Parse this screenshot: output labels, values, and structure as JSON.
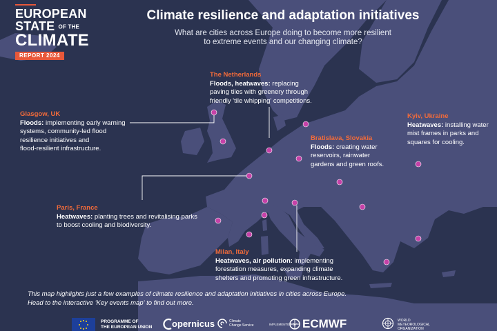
{
  "report": {
    "line1": "EUROPEAN",
    "line2": "STATE",
    "line2_small": "OF THE",
    "line3": "CLIMATE",
    "badge": "REPORT 2024"
  },
  "title": "Climate resilience and adaptation initiatives",
  "subtitle_line1": "What are cities across Europe doing to become more resilient",
  "subtitle_line2": "to extreme events and our changing climate?",
  "callouts": {
    "netherlands": {
      "city": "The Netherlands",
      "hazard": "Floods, heatwaves:",
      "l1": " replacing",
      "l2": "paving tiles with greenery through",
      "l3": "friendly 'tile whipping' competitions."
    },
    "glasgow": {
      "city": "Glasgow, UK",
      "hazard": "Floods:",
      "l1": " implementing early warning",
      "l2": "systems, community-led flood",
      "l3": "resilience initiatives and",
      "l4": "flood-resilient infrastructure."
    },
    "kyiv": {
      "city": "Kyiv, Ukraine",
      "hazard": "Heatwaves:",
      "l1": " installing water",
      "l2": "mist frames in parks and",
      "l3": "squares for cooling."
    },
    "bratislava": {
      "city": "Bratislava, Slovakia",
      "hazard": "Floods:",
      "l1": " creating water",
      "l2": "reservoirs, rainwater",
      "l3": "gardens and green roofs."
    },
    "paris": {
      "city": "Paris, France",
      "hazard": "Heatwaves:",
      "l1": " planting trees and revitalising parks",
      "l2": "to boost cooling and biodiversity."
    },
    "milan": {
      "city": "Milan, Italy",
      "hazard": "Heatwaves, air pollution:",
      "l1": " implementing",
      "l2": "forestation measures, expanding climate",
      "l3": "shelters and promoting green infrastructure."
    }
  },
  "note_line1": "This map highlights just a few examples of climate resilience and adaptation initiatives in cities across Europe.",
  "note_line2": "Head to the interactive 'Key events map' to find out more.",
  "footer": {
    "programme_line1": "PROGRAMME OF",
    "programme_line2": "THE EUROPEAN UNION",
    "copernicus": "opernicus",
    "ccs_line1": "Climate",
    "ccs_line2": "Change Service",
    "implemented_by": "IMPLEMENTED BY",
    "ecmwf": "ECMWF",
    "wmo_line1": "WORLD",
    "wmo_line2": "METEOROLOGICAL",
    "wmo_line3": "ORGANIZATION"
  },
  "colors": {
    "sea": "#2b3350",
    "land": "#4a4f7a",
    "accent": "#e8583a",
    "marker": "#c542a8"
  },
  "markers": [
    {
      "id": "glasgow"
    },
    {
      "id": "uk-south"
    },
    {
      "id": "netherlands"
    },
    {
      "id": "copenhagen"
    },
    {
      "id": "bratislava-north"
    },
    {
      "id": "bratislava"
    },
    {
      "id": "kyiv"
    },
    {
      "id": "paris"
    },
    {
      "id": "lyon"
    },
    {
      "id": "milan"
    },
    {
      "id": "marseille"
    },
    {
      "id": "toulouse"
    },
    {
      "id": "barcelona"
    },
    {
      "id": "belgrade"
    },
    {
      "id": "istanbul"
    },
    {
      "id": "athens"
    }
  ]
}
